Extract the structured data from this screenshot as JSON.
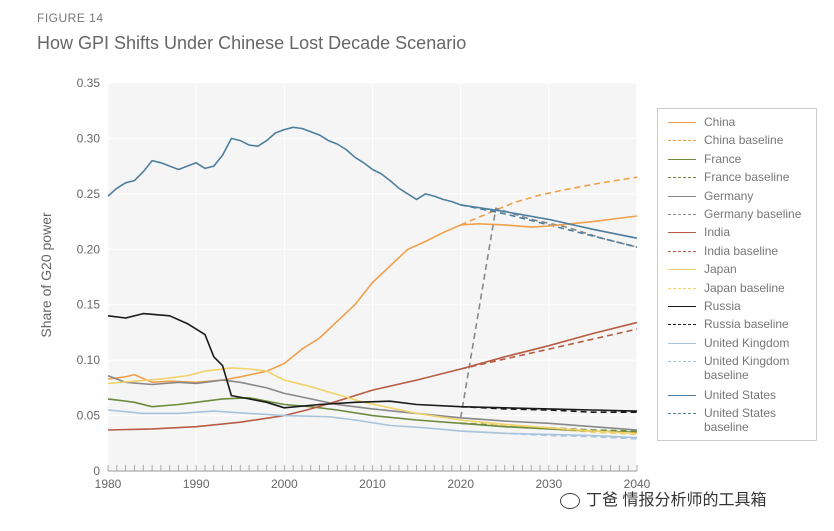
{
  "figure_label": "FIGURE 14",
  "watermark": "丁爸 情报分析师的工具箱",
  "colors": {
    "China": "#f0a04b",
    "France": "#6e8b3d",
    "Germany": "#888888",
    "India": "#b85c44",
    "Japan": "#f2d26b",
    "Russia": "#1a1a1a",
    "United Kingdom": "#a8c4dc",
    "United States": "#4f7f9e"
  },
  "chart_data": {
    "type": "line",
    "title": "How GPI Shifts Under Chinese Lost Decade Scenario",
    "ylabel": "Share of G20 power",
    "xlabel": "",
    "xlim": [
      1980,
      2040
    ],
    "ylim": [
      0,
      0.35
    ],
    "xticks": [
      "1980",
      "1990",
      "2000",
      "2010",
      "2020",
      "2030",
      "2040"
    ],
    "yticks": [
      "0",
      "0.05",
      "0.10",
      "0.15",
      "0.20",
      "0.25",
      "0.30",
      "0.35"
    ],
    "legend_position": "right",
    "grid": true,
    "series": [
      {
        "name": "China",
        "style": "solid",
        "points": [
          [
            1980,
            0.083
          ],
          [
            1982,
            0.085
          ],
          [
            1983,
            0.087
          ],
          [
            1985,
            0.08
          ],
          [
            1987,
            0.081
          ],
          [
            1990,
            0.08
          ],
          [
            1993,
            0.082
          ],
          [
            1995,
            0.085
          ],
          [
            1998,
            0.09
          ],
          [
            2000,
            0.097
          ],
          [
            2002,
            0.11
          ],
          [
            2004,
            0.12
          ],
          [
            2006,
            0.135
          ],
          [
            2008,
            0.15
          ],
          [
            2010,
            0.17
          ],
          [
            2012,
            0.185
          ],
          [
            2014,
            0.2
          ],
          [
            2016,
            0.207
          ],
          [
            2018,
            0.215
          ],
          [
            2020,
            0.222
          ],
          [
            2022,
            0.223
          ],
          [
            2025,
            0.222
          ],
          [
            2028,
            0.22
          ],
          [
            2030,
            0.221
          ],
          [
            2035,
            0.225
          ],
          [
            2040,
            0.23
          ]
        ]
      },
      {
        "name": "China baseline",
        "style": "dashed",
        "points": [
          [
            2020,
            0.222
          ],
          [
            2023,
            0.232
          ],
          [
            2026,
            0.242
          ],
          [
            2029,
            0.249
          ],
          [
            2032,
            0.254
          ],
          [
            2036,
            0.26
          ],
          [
            2040,
            0.265
          ]
        ]
      },
      {
        "name": "France",
        "style": "solid",
        "points": [
          [
            1980,
            0.065
          ],
          [
            1983,
            0.062
          ],
          [
            1985,
            0.058
          ],
          [
            1988,
            0.06
          ],
          [
            1990,
            0.062
          ],
          [
            1993,
            0.065
          ],
          [
            1996,
            0.066
          ],
          [
            2000,
            0.06
          ],
          [
            2003,
            0.058
          ],
          [
            2006,
            0.055
          ],
          [
            2010,
            0.05
          ],
          [
            2015,
            0.046
          ],
          [
            2020,
            0.043
          ],
          [
            2025,
            0.04
          ],
          [
            2030,
            0.038
          ],
          [
            2035,
            0.036
          ],
          [
            2040,
            0.035
          ]
        ]
      },
      {
        "name": "France baseline",
        "style": "dashed",
        "points": [
          [
            2020,
            0.043
          ],
          [
            2025,
            0.041
          ],
          [
            2030,
            0.039
          ],
          [
            2035,
            0.037
          ],
          [
            2040,
            0.036
          ]
        ]
      },
      {
        "name": "Germany",
        "style": "solid",
        "points": [
          [
            1980,
            0.086
          ],
          [
            1982,
            0.08
          ],
          [
            1985,
            0.078
          ],
          [
            1988,
            0.08
          ],
          [
            1990,
            0.079
          ],
          [
            1993,
            0.082
          ],
          [
            1995,
            0.08
          ],
          [
            1998,
            0.075
          ],
          [
            2000,
            0.07
          ],
          [
            2003,
            0.065
          ],
          [
            2006,
            0.06
          ],
          [
            2010,
            0.056
          ],
          [
            2015,
            0.052
          ],
          [
            2020,
            0.048
          ],
          [
            2025,
            0.045
          ],
          [
            2030,
            0.043
          ],
          [
            2035,
            0.04
          ],
          [
            2040,
            0.037
          ]
        ]
      },
      {
        "name": "Germany baseline",
        "style": "dashed",
        "points": [
          [
            2020,
            0.048
          ],
          [
            2024,
            0.237
          ],
          [
            2028,
            0.227
          ],
          [
            2032,
            0.22
          ],
          [
            2036,
            0.21
          ],
          [
            2040,
            0.202
          ]
        ]
      },
      {
        "name": "India",
        "style": "solid",
        "points": [
          [
            1980,
            0.037
          ],
          [
            1985,
            0.038
          ],
          [
            1990,
            0.04
          ],
          [
            1995,
            0.044
          ],
          [
            2000,
            0.05
          ],
          [
            2003,
            0.056
          ],
          [
            2006,
            0.063
          ],
          [
            2010,
            0.073
          ],
          [
            2015,
            0.082
          ],
          [
            2020,
            0.092
          ],
          [
            2025,
            0.103
          ],
          [
            2030,
            0.113
          ],
          [
            2035,
            0.124
          ],
          [
            2040,
            0.134
          ]
        ]
      },
      {
        "name": "India baseline",
        "style": "dashed",
        "points": [
          [
            2020,
            0.092
          ],
          [
            2025,
            0.101
          ],
          [
            2030,
            0.11
          ],
          [
            2035,
            0.119
          ],
          [
            2040,
            0.128
          ]
        ]
      },
      {
        "name": "Japan",
        "style": "solid",
        "points": [
          [
            1980,
            0.079
          ],
          [
            1983,
            0.081
          ],
          [
            1986,
            0.083
          ],
          [
            1989,
            0.086
          ],
          [
            1991,
            0.09
          ],
          [
            1994,
            0.093
          ],
          [
            1996,
            0.092
          ],
          [
            1998,
            0.09
          ],
          [
            2000,
            0.082
          ],
          [
            2003,
            0.076
          ],
          [
            2006,
            0.069
          ],
          [
            2009,
            0.062
          ],
          [
            2012,
            0.057
          ],
          [
            2015,
            0.052
          ],
          [
            2020,
            0.046
          ],
          [
            2025,
            0.042
          ],
          [
            2030,
            0.039
          ],
          [
            2035,
            0.036
          ],
          [
            2040,
            0.034
          ]
        ]
      },
      {
        "name": "Japan baseline",
        "style": "dashed",
        "points": [
          [
            2020,
            0.046
          ],
          [
            2025,
            0.041
          ],
          [
            2030,
            0.038
          ],
          [
            2035,
            0.035
          ],
          [
            2040,
            0.033
          ]
        ]
      },
      {
        "name": "Russia",
        "style": "solid",
        "points": [
          [
            1980,
            0.14
          ],
          [
            1982,
            0.138
          ],
          [
            1984,
            0.142
          ],
          [
            1987,
            0.14
          ],
          [
            1989,
            0.133
          ],
          [
            1991,
            0.123
          ],
          [
            1992,
            0.103
          ],
          [
            1993,
            0.095
          ],
          [
            1994,
            0.068
          ],
          [
            1996,
            0.065
          ],
          [
            1998,
            0.062
          ],
          [
            2000,
            0.057
          ],
          [
            2004,
            0.06
          ],
          [
            2008,
            0.062
          ],
          [
            2012,
            0.063
          ],
          [
            2015,
            0.06
          ],
          [
            2020,
            0.058
          ],
          [
            2025,
            0.057
          ],
          [
            2030,
            0.056
          ],
          [
            2035,
            0.055
          ],
          [
            2040,
            0.054
          ]
        ]
      },
      {
        "name": "Russia baseline",
        "style": "dashed",
        "points": [
          [
            2020,
            0.058
          ],
          [
            2025,
            0.056
          ],
          [
            2030,
            0.055
          ],
          [
            2035,
            0.053
          ],
          [
            2040,
            0.053
          ]
        ]
      },
      {
        "name": "United Kingdom",
        "style": "solid",
        "points": [
          [
            1980,
            0.055
          ],
          [
            1984,
            0.052
          ],
          [
            1988,
            0.052
          ],
          [
            1992,
            0.054
          ],
          [
            1996,
            0.052
          ],
          [
            2000,
            0.05
          ],
          [
            2005,
            0.049
          ],
          [
            2008,
            0.046
          ],
          [
            2012,
            0.041
          ],
          [
            2016,
            0.039
          ],
          [
            2020,
            0.036
          ],
          [
            2025,
            0.034
          ],
          [
            2030,
            0.033
          ],
          [
            2035,
            0.032
          ],
          [
            2040,
            0.03
          ]
        ]
      },
      {
        "name": "United Kingdom baseline",
        "style": "dashed",
        "points": [
          [
            2020,
            0.036
          ],
          [
            2025,
            0.034
          ],
          [
            2030,
            0.032
          ],
          [
            2035,
            0.031
          ],
          [
            2040,
            0.029
          ]
        ]
      },
      {
        "name": "United States",
        "style": "solid",
        "points": [
          [
            1980,
            0.248
          ],
          [
            1981,
            0.255
          ],
          [
            1982,
            0.26
          ],
          [
            1983,
            0.262
          ],
          [
            1984,
            0.27
          ],
          [
            1985,
            0.28
          ],
          [
            1986,
            0.278
          ],
          [
            1987,
            0.275
          ],
          [
            1988,
            0.272
          ],
          [
            1989,
            0.275
          ],
          [
            1990,
            0.278
          ],
          [
            1991,
            0.273
          ],
          [
            1992,
            0.275
          ],
          [
            1993,
            0.285
          ],
          [
            1994,
            0.3
          ],
          [
            1995,
            0.298
          ],
          [
            1996,
            0.294
          ],
          [
            1997,
            0.293
          ],
          [
            1998,
            0.298
          ],
          [
            1999,
            0.305
          ],
          [
            2000,
            0.308
          ],
          [
            2001,
            0.31
          ],
          [
            2002,
            0.309
          ],
          [
            2003,
            0.306
          ],
          [
            2004,
            0.303
          ],
          [
            2005,
            0.298
          ],
          [
            2006,
            0.295
          ],
          [
            2007,
            0.29
          ],
          [
            2008,
            0.283
          ],
          [
            2009,
            0.278
          ],
          [
            2010,
            0.272
          ],
          [
            2011,
            0.268
          ],
          [
            2012,
            0.262
          ],
          [
            2013,
            0.255
          ],
          [
            2014,
            0.25
          ],
          [
            2015,
            0.245
          ],
          [
            2016,
            0.25
          ],
          [
            2017,
            0.248
          ],
          [
            2018,
            0.245
          ],
          [
            2019,
            0.243
          ],
          [
            2020,
            0.24
          ],
          [
            2025,
            0.234
          ],
          [
            2030,
            0.227
          ],
          [
            2035,
            0.218
          ],
          [
            2040,
            0.21
          ]
        ]
      },
      {
        "name": "United States baseline",
        "style": "dashed",
        "points": [
          [
            2020,
            0.24
          ],
          [
            2025,
            0.232
          ],
          [
            2030,
            0.222
          ],
          [
            2035,
            0.212
          ],
          [
            2040,
            0.202
          ]
        ]
      }
    ]
  }
}
